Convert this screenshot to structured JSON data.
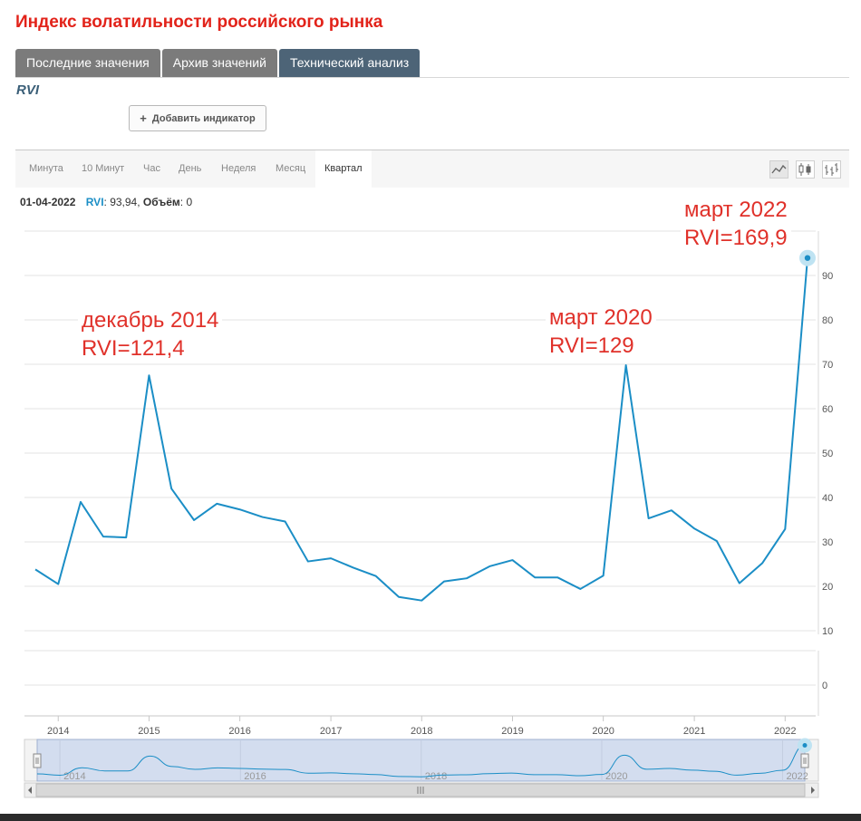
{
  "page": {
    "title": "Индекс волатильности российского рынка",
    "tabs": [
      {
        "label": "Последние значения",
        "active": false
      },
      {
        "label": "Архив значений",
        "active": false
      },
      {
        "label": "Технический анализ",
        "active": true
      }
    ],
    "instrument": "RVI",
    "add_indicator_label": "Добавить индикатор",
    "periods": [
      {
        "label": "Минута",
        "active": false
      },
      {
        "label": "10 Минут",
        "active": false
      },
      {
        "label": "Час",
        "active": false
      },
      {
        "label": "День",
        "active": false
      },
      {
        "label": "Неделя",
        "active": false
      },
      {
        "label": "Месяц",
        "active": false
      },
      {
        "label": "Квартал",
        "active": true
      }
    ],
    "chart_type_icons": [
      "line-chart-icon",
      "candlestick-icon",
      "ohlc-bars-icon"
    ],
    "info": {
      "date": "01-04-2022",
      "series": "RVI",
      "value_text": ": 93,94,",
      "volume_label": "Объём",
      "volume_text": ": 0"
    },
    "annotations": [
      {
        "line1": "декабрь 2014",
        "line2": "RVI=121,4"
      },
      {
        "line1": "март 2020",
        "line2": "RVI=129"
      },
      {
        "line1": "март 2022",
        "line2": "RVI=169,9"
      }
    ],
    "colors": {
      "title": "#e2231a",
      "tab_inactive": "#7b7b7b",
      "tab_active": "#4d6477",
      "series": "#1b8ec6",
      "annotation": "#e0312a",
      "navigator_fill": "#d3ddef"
    }
  },
  "chart_data": {
    "type": "line",
    "series": [
      {
        "name": "RVI",
        "x": [
          "2013-10-01",
          "2014-01-01",
          "2014-04-01",
          "2014-07-01",
          "2014-10-01",
          "2015-01-01",
          "2015-04-01",
          "2015-07-01",
          "2015-10-01",
          "2016-01-01",
          "2016-04-01",
          "2016-07-01",
          "2016-10-01",
          "2017-01-01",
          "2017-04-01",
          "2017-07-01",
          "2017-10-01",
          "2018-01-01",
          "2018-04-01",
          "2018-07-01",
          "2018-10-01",
          "2019-01-01",
          "2019-04-01",
          "2019-07-01",
          "2019-10-01",
          "2020-01-01",
          "2020-04-01",
          "2020-07-01",
          "2020-10-01",
          "2021-01-01",
          "2021-04-01",
          "2021-07-01",
          "2021-10-01",
          "2022-01-01",
          "2022-04-01"
        ],
        "values": [
          23.8,
          20.5,
          39.0,
          31.2,
          31.0,
          67.5,
          42.0,
          34.9,
          38.6,
          37.3,
          35.6,
          34.6,
          25.6,
          26.3,
          24.2,
          22.3,
          17.6,
          16.8,
          21.1,
          21.8,
          24.5,
          25.9,
          22.0,
          22.0,
          19.4,
          22.4,
          69.8,
          35.3,
          37.1,
          33.0,
          30.2,
          20.7,
          25.2,
          32.9,
          93.94
        ]
      }
    ],
    "x_tick_labels": [
      "2014",
      "2015",
      "2016",
      "2017",
      "2018",
      "2019",
      "2020",
      "2021",
      "2022"
    ],
    "y_tick_labels": [
      "10",
      "20",
      "30",
      "40",
      "50",
      "60",
      "70",
      "80",
      "90"
    ],
    "ylim": [
      10,
      100
    ],
    "volume_panel": {
      "y_tick_labels": [
        "0"
      ]
    },
    "navigator": {
      "x_tick_labels": [
        "2014",
        "2016",
        "2018",
        "2020",
        "2022"
      ]
    },
    "grid": true
  }
}
